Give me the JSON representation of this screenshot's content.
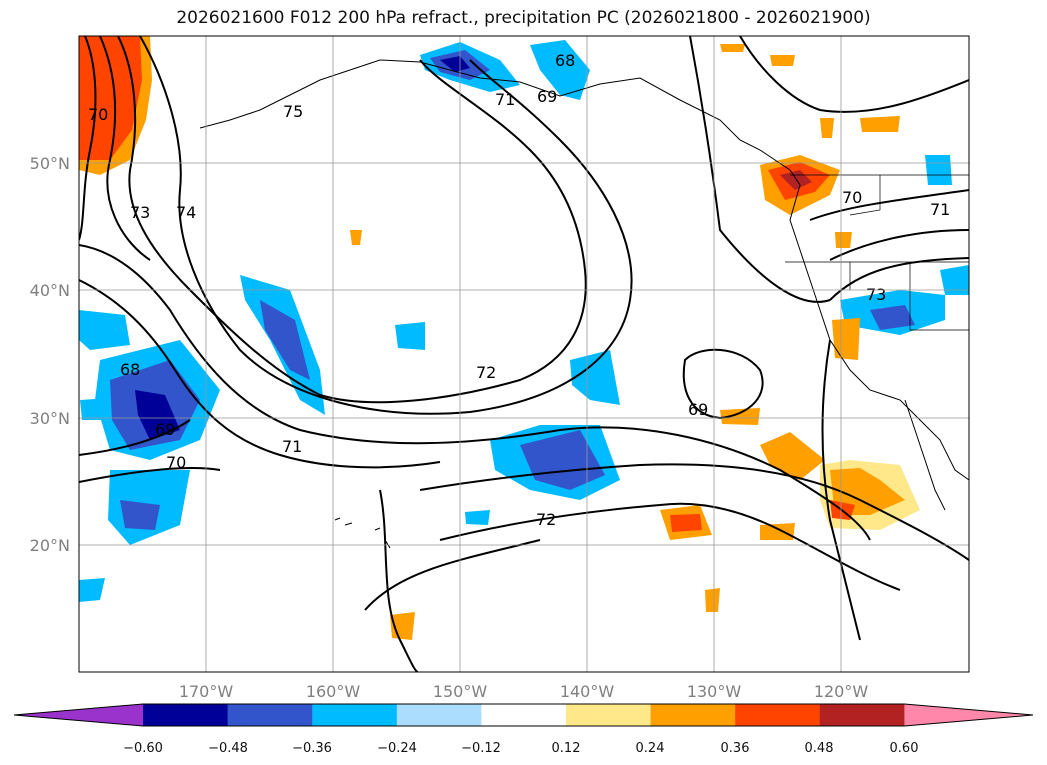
{
  "title": "2026021600 F012 200 hPa refract., precipitation PC (2026021800 - 2026021900)",
  "latitude_labels": [
    "50°N",
    "40°N",
    "30°N",
    "20°N"
  ],
  "longitude_labels": [
    "170°W",
    "160°W",
    "150°W",
    "140°W",
    "130°W",
    "120°W"
  ],
  "contour_labels": [
    "70",
    "73",
    "74",
    "75",
    "68",
    "71",
    "69",
    "68",
    "69",
    "70",
    "71",
    "72",
    "69",
    "72",
    "70",
    "71",
    "73"
  ],
  "colorbar": {
    "ticks": [
      "−0.60",
      "−0.48",
      "−0.36",
      "−0.24",
      "−0.12",
      "0.12",
      "0.24",
      "0.36",
      "0.48",
      "0.60"
    ],
    "colors": [
      "#9933cc",
      "#000099",
      "#3355cc",
      "#00bbff",
      "#aaddff",
      "#ffffff",
      "#ffe88a",
      "#ff9f00",
      "#ff4400",
      "#b22222",
      "#ff88aa"
    ]
  }
}
